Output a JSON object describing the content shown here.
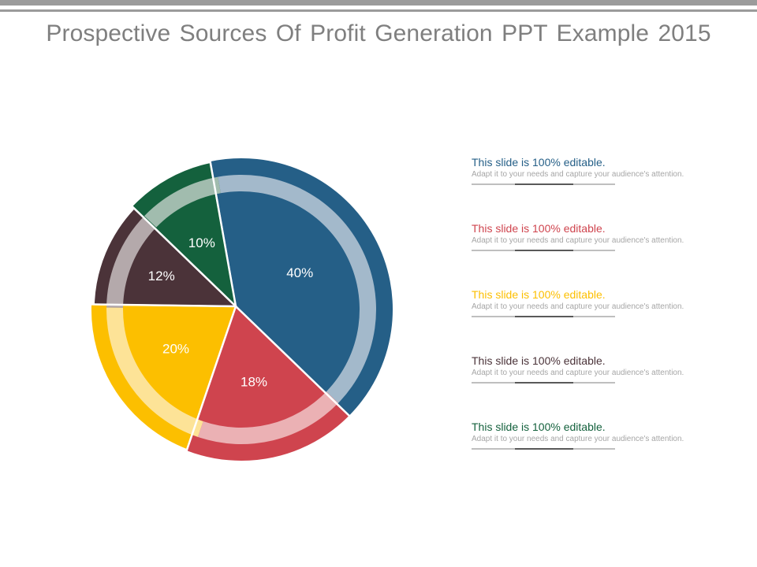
{
  "title": "Prospective Sources Of Profit Generation PPT Example 2015",
  "chart_data": {
    "type": "pie",
    "slices": [
      {
        "value": 40,
        "label": "40%",
        "color": "#255f87",
        "ring_color": "#a3b9cb"
      },
      {
        "value": 18,
        "label": "18%",
        "color": "#cf444e",
        "ring_color": "#ebb1b4"
      },
      {
        "value": 20,
        "label": "20%",
        "color": "#fcbf00",
        "ring_color": "#fde397"
      },
      {
        "value": 12,
        "label": "12%",
        "color": "#4b3339",
        "ring_color": "#b4a9ab"
      },
      {
        "value": 10,
        "label": "10%",
        "color": "#14613d",
        "ring_color": "#a1bcae"
      }
    ]
  },
  "legend": [
    {
      "heading": "This slide is 100% editable.",
      "body": "Adapt it to your needs and capture your audience's attention.",
      "color": "#255f87"
    },
    {
      "heading": "This slide is 100% editable.",
      "body": "Adapt it to your needs and capture your audience's attention.",
      "color": "#cf444e"
    },
    {
      "heading": "This slide is 100% editable.",
      "body": "Adapt it to your needs and capture your audience's attention.",
      "color": "#fcbf00"
    },
    {
      "heading": "This slide is 100% editable.",
      "body": "Adapt it to your needs and capture your audience's attention.",
      "color": "#4b3339"
    },
    {
      "heading": "This slide is 100% editable.",
      "body": "Adapt it to your needs and capture your audience's attention.",
      "color": "#14613d"
    }
  ]
}
